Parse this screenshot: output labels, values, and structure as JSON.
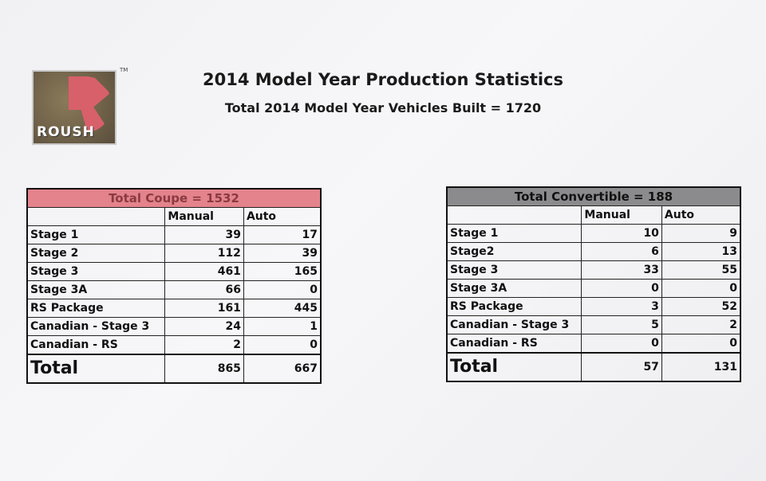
{
  "logo": {
    "text": "ROUSH",
    "tm": "TM"
  },
  "title": "2014 Model Year Production Statistics",
  "subtitle": "Total 2014 Model Year Vehicles Built = 1720",
  "tables": {
    "coupe": {
      "header": "Total Coupe = 1532",
      "columns": [
        "Manual",
        "Auto"
      ],
      "rows": [
        {
          "label": "Stage 1",
          "manual": "39",
          "auto": "17"
        },
        {
          "label": "Stage 2",
          "manual": "112",
          "auto": "39"
        },
        {
          "label": "Stage 3",
          "manual": "461",
          "auto": "165"
        },
        {
          "label": "Stage 3A",
          "manual": "66",
          "auto": "0"
        },
        {
          "label": "RS Package",
          "manual": "161",
          "auto": "445"
        },
        {
          "label": "Canadian - Stage 3",
          "manual": "24",
          "auto": "1"
        },
        {
          "label": "Canadian - RS",
          "manual": "2",
          "auto": "0"
        }
      ],
      "total": {
        "label": "Total",
        "manual": "865",
        "auto": "667"
      }
    },
    "convertible": {
      "header": "Total Convertible = 188",
      "columns": [
        "Manual",
        "Auto"
      ],
      "rows": [
        {
          "label": "Stage 1",
          "manual": "10",
          "auto": "9"
        },
        {
          "label": "Stage2",
          "manual": "6",
          "auto": "13"
        },
        {
          "label": "Stage 3",
          "manual": "33",
          "auto": "55"
        },
        {
          "label": "Stage 3A",
          "manual": "0",
          "auto": "0"
        },
        {
          "label": "RS Package",
          "manual": "3",
          "auto": "52"
        },
        {
          "label": "Canadian - Stage 3",
          "manual": "5",
          "auto": "2"
        },
        {
          "label": "Canadian - RS",
          "manual": "0",
          "auto": "0"
        }
      ],
      "total": {
        "label": "Total",
        "manual": "57",
        "auto": "131"
      }
    }
  }
}
